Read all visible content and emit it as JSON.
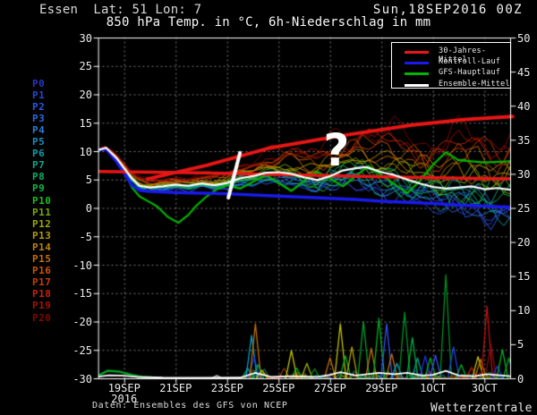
{
  "header": {
    "station_line": "Essen  Lat: 51 Lon: 7",
    "run_datetime": "Sun,18SEP2016 00Z"
  },
  "title": "850 hPa Temp. in °C, 6h-Niederschlag in mm",
  "legend": [
    {
      "label": "30-Jahres-Mittel",
      "color": "#e81616"
    },
    {
      "label": "Kontroll-Lauf",
      "color": "#1a1aee"
    },
    {
      "label": "GFS-Hauptlauf",
      "color": "#00b400"
    },
    {
      "label": "Ensemble-Mittel",
      "color": "#ffffff"
    }
  ],
  "members": [
    {
      "label": "P0",
      "color": "#2a35c8"
    },
    {
      "label": "P1",
      "color": "#2547d8"
    },
    {
      "label": "P2",
      "color": "#2758e8"
    },
    {
      "label": "P3",
      "color": "#2a6ae8"
    },
    {
      "label": "P4",
      "color": "#2e7cd8"
    },
    {
      "label": "P5",
      "color": "#1a8ec0"
    },
    {
      "label": "P6",
      "color": "#089fa8"
    },
    {
      "label": "P7",
      "color": "#0aa88a"
    },
    {
      "label": "P8",
      "color": "#0cb068"
    },
    {
      "label": "P9",
      "color": "#0eb646"
    },
    {
      "label": "P10",
      "color": "#1cbe24"
    },
    {
      "label": "P11",
      "color": "#7aa80c"
    },
    {
      "label": "P12",
      "color": "#9aa608"
    },
    {
      "label": "P13",
      "color": "#b49a06"
    },
    {
      "label": "P14",
      "color": "#bc8406"
    },
    {
      "label": "P15",
      "color": "#c66d04"
    },
    {
      "label": "P16",
      "color": "#cc5503"
    },
    {
      "label": "P17",
      "color": "#cc3d02"
    },
    {
      "label": "P18",
      "color": "#c42501"
    },
    {
      "label": "P19",
      "color": "#a81000"
    },
    {
      "label": "P20",
      "color": "#820800"
    }
  ],
  "footer": {
    "source": "Daten: Ensembles des GFS von NCEP",
    "brand": "Wetterzentrale"
  },
  "annotations": {
    "question_mark": {
      "text": "?",
      "day": 9.25,
      "temp": 9.2
    },
    "slash": {
      "d1": 5.5,
      "t1": 9.7,
      "d2": 5.05,
      "t2": 1.8,
      "width": 4,
      "color": "#ffffff"
    }
  },
  "chart_data": {
    "type": "line",
    "title": "850 hPa Temp. in °C, 6h-Niederschlag in mm",
    "x_axis": {
      "span_days": 16,
      "ticks": [
        {
          "d": 1,
          "label": "19SEP",
          "sublabel": "2016"
        },
        {
          "d": 3,
          "label": "21SEP"
        },
        {
          "d": 5,
          "label": "23SEP"
        },
        {
          "d": 7,
          "label": "25SEP"
        },
        {
          "d": 9,
          "label": "27SEP"
        },
        {
          "d": 11,
          "label": "29SEP"
        },
        {
          "d": 13,
          "label": "1OCT"
        },
        {
          "d": 15,
          "label": "3OCT"
        }
      ]
    },
    "y_left_temp_c": {
      "min": -30,
      "max": 30,
      "step": 5
    },
    "y_right_precip_mm": {
      "min": 0,
      "max": 50,
      "step": 5
    },
    "grid": {
      "color": "#999999",
      "style": "dotted"
    },
    "series": {
      "climate_mean": {
        "name": "30-Jahres-Mittel",
        "color": "#e81616",
        "width": 3.5,
        "points": [
          [
            0,
            6.4
          ],
          [
            4,
            6.2
          ],
          [
            8,
            5.8
          ],
          [
            12,
            5.4
          ],
          [
            16,
            5.1
          ]
        ]
      },
      "trend_annotation": {
        "name": "rising red annotation line",
        "color": "#e81616",
        "width": 4,
        "points": [
          [
            1.9,
            5.1
          ],
          [
            4.2,
            7.5
          ],
          [
            6.6,
            10.5
          ],
          [
            9.4,
            12.7
          ],
          [
            12.2,
            14.6
          ],
          [
            14.3,
            15.6
          ],
          [
            16.1,
            16.1
          ]
        ]
      },
      "control_run": {
        "name": "Kontroll-Lauf",
        "color": "#1a1aee",
        "width": 3.5,
        "points": [
          [
            0,
            10.2
          ],
          [
            0.3,
            10.4
          ],
          [
            0.7,
            8.2
          ],
          [
            1,
            6.2
          ],
          [
            1.3,
            4.0
          ],
          [
            1.6,
            3.1
          ],
          [
            2,
            2.9
          ],
          [
            3,
            2.7
          ],
          [
            4,
            2.6
          ],
          [
            5,
            2.5
          ],
          [
            6,
            2.3
          ],
          [
            7,
            2.1
          ],
          [
            8,
            1.9
          ],
          [
            9,
            1.7
          ],
          [
            10,
            1.5
          ],
          [
            11,
            1.2
          ],
          [
            12,
            1.0
          ],
          [
            13,
            0.8
          ],
          [
            14,
            0.5
          ],
          [
            15,
            0.3
          ],
          [
            16,
            0.1
          ]
        ]
      },
      "main_run": {
        "name": "GFS-Hauptlauf",
        "color": "#00b400",
        "width": 2.2,
        "points": [
          [
            0,
            10.2
          ],
          [
            0.3,
            10.4
          ],
          [
            0.7,
            8.6
          ],
          [
            1,
            6.6
          ],
          [
            1.3,
            3.6
          ],
          [
            1.6,
            2.0
          ],
          [
            2,
            1.0
          ],
          [
            2.3,
            0.2
          ],
          [
            2.7,
            -1.6
          ],
          [
            3.1,
            -2.6
          ],
          [
            3.5,
            -1.2
          ],
          [
            3.8,
            0.4
          ],
          [
            4.2,
            2.0
          ],
          [
            4.6,
            3.3
          ],
          [
            5,
            4.0
          ],
          [
            5.5,
            3.4
          ],
          [
            6,
            4.6
          ],
          [
            6.5,
            5.8
          ],
          [
            7,
            4.4
          ],
          [
            7.5,
            3.0
          ],
          [
            8,
            4.8
          ],
          [
            8.5,
            6.4
          ],
          [
            9,
            5.2
          ],
          [
            9.5,
            3.8
          ],
          [
            10,
            5.6
          ],
          [
            10.5,
            7.4
          ],
          [
            11,
            5.8
          ],
          [
            11.5,
            4.2
          ],
          [
            12,
            2.6
          ],
          [
            12.5,
            4.8
          ],
          [
            13,
            7.6
          ],
          [
            13.5,
            9.8
          ],
          [
            14,
            8.4
          ],
          [
            14.5,
            8.2
          ],
          [
            15,
            8.0
          ],
          [
            16,
            8.2
          ]
        ]
      },
      "ensemble_mean": {
        "name": "Ensemble-Mittel",
        "color": "#ffffff",
        "width": 2.2,
        "points": [
          [
            0,
            10.2
          ],
          [
            0.3,
            10.6
          ],
          [
            0.7,
            8.8
          ],
          [
            1,
            7.0
          ],
          [
            1.3,
            5.2
          ],
          [
            1.6,
            3.9
          ],
          [
            2,
            3.6
          ],
          [
            2.5,
            3.8
          ],
          [
            3,
            4.1
          ],
          [
            3.5,
            3.9
          ],
          [
            4,
            4.3
          ],
          [
            4.5,
            4.0
          ],
          [
            5,
            4.4
          ],
          [
            5.5,
            5.2
          ],
          [
            6,
            5.6
          ],
          [
            6.5,
            6.2
          ],
          [
            7,
            6.3
          ],
          [
            7.5,
            6.0
          ],
          [
            8,
            5.4
          ],
          [
            8.5,
            4.9
          ],
          [
            9,
            5.6
          ],
          [
            9.5,
            6.6
          ],
          [
            10,
            7.0
          ],
          [
            10.4,
            7.2
          ],
          [
            11,
            6.3
          ],
          [
            11.5,
            5.8
          ],
          [
            12,
            5.0
          ],
          [
            12.5,
            4.3
          ],
          [
            13,
            3.7
          ],
          [
            13.5,
            3.4
          ],
          [
            14,
            3.6
          ],
          [
            14.5,
            3.8
          ],
          [
            15,
            3.3
          ],
          [
            15.5,
            3.5
          ],
          [
            16,
            3.2
          ]
        ]
      },
      "mean_precip": {
        "name": "Ensemble-Mittel Niederschlag",
        "color": "#ffffff",
        "width": 1.8,
        "points": [
          [
            0,
            0.25
          ],
          [
            0.4,
            0.45
          ],
          [
            0.9,
            0.4
          ],
          [
            1.5,
            0.2
          ],
          [
            2.5,
            0.1
          ],
          [
            4,
            0.08
          ],
          [
            5.5,
            0.1
          ],
          [
            6.1,
            0.8
          ],
          [
            6.7,
            0.2
          ],
          [
            7.5,
            0.3
          ],
          [
            8.5,
            0.2
          ],
          [
            9,
            0.5
          ],
          [
            9.4,
            0.9
          ],
          [
            10,
            0.4
          ],
          [
            10.9,
            0.8
          ],
          [
            11.5,
            0.6
          ],
          [
            12,
            0.8
          ],
          [
            12.6,
            0.4
          ],
          [
            13,
            0.5
          ],
          [
            13.5,
            1.1
          ],
          [
            14,
            0.4
          ],
          [
            14.6,
            0.3
          ],
          [
            15.1,
            0.6
          ],
          [
            15.7,
            0.4
          ],
          [
            16,
            0.3
          ]
        ]
      },
      "main_precip_early": {
        "name": "Hauptlauf Niederschlag Anfang",
        "color": "#00a022",
        "width": 2.5,
        "points": [
          [
            0.05,
            0.5
          ],
          [
            0.35,
            1.1
          ],
          [
            0.8,
            1.0
          ],
          [
            1.3,
            0.5
          ],
          [
            1.8,
            0.15
          ],
          [
            2.3,
            0.05
          ]
        ]
      }
    },
    "ensemble": {
      "count": 21,
      "seed": 20160918,
      "start_temp": 10.2,
      "spread_by_day": [
        [
          0,
          0.15
        ],
        [
          1,
          0.7
        ],
        [
          2,
          0.9
        ],
        [
          3,
          1.0
        ],
        [
          4,
          1.1
        ],
        [
          5,
          1.3
        ],
        [
          6,
          1.9
        ],
        [
          7,
          2.6
        ],
        [
          8,
          3.3
        ],
        [
          9,
          4.0
        ],
        [
          10,
          4.4
        ],
        [
          11,
          4.9
        ],
        [
          12,
          5.4
        ],
        [
          13,
          5.8
        ],
        [
          14,
          6.3
        ],
        [
          15,
          6.7
        ],
        [
          16,
          6.9
        ]
      ]
    },
    "precip_spikes_day_mm_color": [
      [
        4.6,
        0.4,
        "#cccccc"
      ],
      [
        5.8,
        1.5,
        "#00aa88"
      ],
      [
        5.95,
        6.3,
        "#00aadd"
      ],
      [
        6.05,
        3.1,
        "#2233ee"
      ],
      [
        6.1,
        8.0,
        "#cc7700"
      ],
      [
        6.2,
        2.0,
        "#00bb22"
      ],
      [
        6.35,
        1.2,
        "#cccc00"
      ],
      [
        7.5,
        4.1,
        "#cccc00"
      ],
      [
        7.7,
        1.5,
        "#00bb22"
      ],
      [
        8.1,
        2.2,
        "#aabb00"
      ],
      [
        8.4,
        1.4,
        "#008822"
      ],
      [
        9.0,
        3.0,
        "#cc7700"
      ],
      [
        9.4,
        8.0,
        "#cccc00"
      ],
      [
        9.6,
        3.3,
        "#00bb22"
      ],
      [
        9.85,
        4.6,
        "#bbaa00"
      ],
      [
        10.3,
        8.3,
        "#00aa33"
      ],
      [
        10.6,
        4.4,
        "#cc7700"
      ],
      [
        10.9,
        8.8,
        "#00bb22"
      ],
      [
        11.2,
        8.0,
        "#3355ff"
      ],
      [
        11.4,
        3.6,
        "#cc7700"
      ],
      [
        11.6,
        2.2,
        "#00aadd"
      ],
      [
        11.9,
        9.7,
        "#009922"
      ],
      [
        12.2,
        6.0,
        "#00bb44"
      ],
      [
        12.4,
        3.0,
        "#00aa88"
      ],
      [
        12.7,
        3.3,
        "#2233ee"
      ],
      [
        12.9,
        3.0,
        "#00bb22"
      ],
      [
        13.1,
        3.4,
        "#3355ff"
      ],
      [
        13.5,
        15.2,
        "#009922"
      ],
      [
        13.8,
        4.6,
        "#2244ee"
      ],
      [
        14.1,
        2.0,
        "#00bb22"
      ],
      [
        14.5,
        1.6,
        "#cc2200"
      ],
      [
        14.75,
        3.2,
        "#cccc00"
      ],
      [
        14.85,
        2.8,
        "#cc7700"
      ],
      [
        15.1,
        10.6,
        "#cc1111"
      ],
      [
        15.25,
        5.0,
        "#881111"
      ],
      [
        15.5,
        1.8,
        "#2233ee"
      ],
      [
        15.7,
        4.2,
        "#00bb22"
      ],
      [
        15.95,
        3.0,
        "#00aa33"
      ]
    ]
  }
}
